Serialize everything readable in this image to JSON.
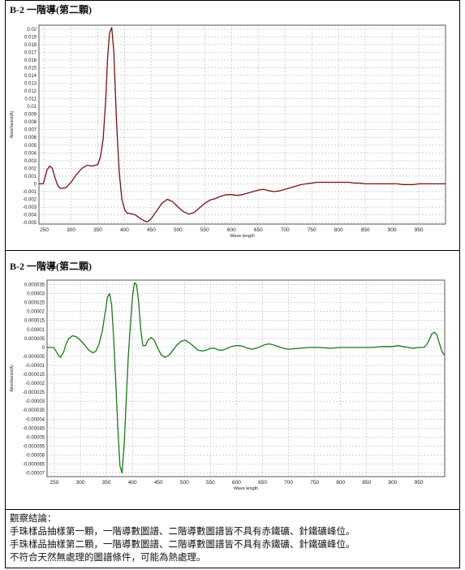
{
  "section1": {
    "title": "B-2 一階導(第二顆)"
  },
  "section2": {
    "title": "B-2 一階導(第二顆)"
  },
  "notes": {
    "heading": "觀察結論：",
    "line1": "手珠樣品抽樣第一顆，一階導數圖譜、二階導數圖譜皆不具有赤鐵礦、針鐵礦峰位。",
    "line2": "手珠樣品抽樣第二顆，一階導數圖譜、二階導數圖譜皆不具有赤鐵礦、針鐵礦峰位。",
    "line3": "不符合天然無處理的圖譜條件，可能為熱處理。"
  },
  "chart_data": [
    {
      "type": "line",
      "xlabel": "Wave length",
      "ylabel": "Absorbance(A)",
      "xlim": [
        240,
        1000
      ],
      "ylim": [
        -0.0052,
        0.0205
      ],
      "xticks": [
        250,
        300,
        350,
        400,
        450,
        500,
        550,
        600,
        650,
        700,
        750,
        800,
        850,
        900,
        950
      ],
      "yticks": [
        0.02,
        0.019,
        0.018,
        0.017,
        0.016,
        0.015,
        0.014,
        0.013,
        0.012,
        0.011,
        0.01,
        0.009,
        0.008,
        0.007,
        0.006,
        0.005,
        0.004,
        0.003,
        0.002,
        0.001,
        0,
        -0.001,
        -0.002,
        -0.003,
        -0.004,
        -0.005
      ],
      "ytick_labels": [
        "0.02",
        "0.019",
        "0.018",
        "0.017",
        "0.016",
        "0.015",
        "0.014",
        "0.013",
        "0.012",
        "0.011",
        "0.01",
        "0.009",
        "0.008",
        "0.007",
        "0.006",
        "0.005",
        "0.004",
        "0.003",
        "0.002",
        "0.001",
        "0",
        "-0.001",
        "-0.002",
        "-0.003",
        "-0.004",
        "-0.005"
      ],
      "grid": true,
      "line_color": "#7a1010",
      "series": [
        {
          "x": [
            240,
            248,
            255,
            260,
            265,
            270,
            275,
            280,
            290,
            300,
            310,
            320,
            330,
            340,
            350,
            355,
            360,
            365,
            368,
            372,
            376,
            380,
            385,
            390,
            395,
            400,
            405,
            410,
            420,
            430,
            440,
            445,
            450,
            460,
            470,
            480,
            490,
            500,
            510,
            520,
            530,
            540,
            550,
            560,
            570,
            580,
            590,
            600,
            610,
            620,
            630,
            640,
            650,
            660,
            670,
            680,
            690,
            700,
            710,
            720,
            730,
            740,
            750,
            760,
            770,
            780,
            790,
            800,
            810,
            820,
            830,
            840,
            850,
            860,
            870,
            880,
            890,
            900,
            910,
            920,
            930,
            940,
            950,
            960,
            970,
            980,
            990,
            1000
          ],
          "y": [
            0,
            0,
            0.0018,
            0.0023,
            0.002,
            0.0008,
            -0.0002,
            -0.0006,
            -0.0005,
            0.0002,
            0.0012,
            0.002,
            0.0024,
            0.0023,
            0.0025,
            0.0035,
            0.0058,
            0.011,
            0.016,
            0.0195,
            0.0202,
            0.017,
            0.008,
            0.0015,
            -0.002,
            -0.0033,
            -0.0038,
            -0.0038,
            -0.004,
            -0.0045,
            -0.0049,
            -0.0048,
            -0.0045,
            -0.0035,
            -0.0025,
            -0.002,
            -0.0023,
            -0.003,
            -0.0036,
            -0.0039,
            -0.0037,
            -0.0031,
            -0.0025,
            -0.0021,
            -0.0019,
            -0.0016,
            -0.0014,
            -0.0014,
            -0.0015,
            -0.0014,
            -0.0012,
            -0.001,
            -0.0008,
            -0.0007,
            -0.0009,
            -0.001,
            -0.0009,
            -0.0007,
            -0.0005,
            -0.0003,
            -0.0001,
            0,
            0.0001,
            0.0002,
            0.0002,
            0.0002,
            0.0002,
            0.0002,
            0.0002,
            0.0002,
            0.0001,
            0.0001,
            0,
            0,
            0,
            0,
            0,
            0,
            0,
            -0.0001,
            -0.0001,
            -0.0001,
            0,
            0,
            0,
            0,
            0,
            0
          ]
        }
      ]
    },
    {
      "type": "line",
      "xlabel": "Wave length",
      "ylabel": "Absorbance(A)",
      "xlim": [
        236,
        1000
      ],
      "ylim": [
        -7.2e-05,
        3.75e-05
      ],
      "xticks": [
        250,
        300,
        350,
        400,
        450,
        500,
        550,
        600,
        650,
        700,
        750,
        800,
        850,
        900,
        950
      ],
      "yticks": [
        3.5e-05,
        3e-05,
        2.5e-05,
        2e-05,
        1.5e-05,
        1e-05,
        5e-06,
        0,
        -5e-06,
        -1e-05,
        -1.5e-05,
        -2e-05,
        -2.5e-05,
        -3e-05,
        -3.5e-05,
        -4e-05,
        -4.5e-05,
        -5e-05,
        -5.5e-05,
        -6e-05,
        -6.5e-05,
        -7e-05
      ],
      "ytick_labels": [
        "0.000035",
        "0.00003",
        "0.000025",
        "0.00002",
        "0.000015",
        "0.00001",
        "0.000005",
        "0",
        "-0.000005",
        "-0.00001",
        "-0.000015",
        "-0.00002",
        "-0.000025",
        "-0.00003",
        "-0.000035",
        "-0.00004",
        "-0.000045",
        "-0.00005",
        "-0.000055",
        "-0.00006",
        "-0.000065",
        "-0.00007"
      ],
      "grid": true,
      "line_color": "#1a7a1a",
      "series": [
        {
          "x": [
            236,
            248,
            252,
            258,
            262,
            268,
            272,
            278,
            285,
            292,
            300,
            308,
            316,
            324,
            330,
            336,
            342,
            348,
            352,
            356,
            360,
            364,
            368,
            372,
            376,
            380,
            384,
            388,
            392,
            396,
            400,
            404,
            408,
            412,
            416,
            420,
            425,
            430,
            436,
            442,
            448,
            455,
            462,
            470,
            478,
            486,
            494,
            502,
            510,
            518,
            526,
            534,
            542,
            550,
            558,
            566,
            574,
            582,
            590,
            598,
            606,
            614,
            622,
            630,
            638,
            646,
            654,
            662,
            670,
            680,
            690,
            700,
            720,
            740,
            760,
            780,
            800,
            820,
            840,
            860,
            880,
            900,
            910,
            920,
            930,
            940,
            950,
            960,
            965,
            970,
            975,
            980,
            985,
            990,
            995,
            1000
          ],
          "y": [
            0,
            0,
            -1.5e-06,
            -4.5e-06,
            -5.5e-06,
            -2.5e-06,
            1.5e-06,
            5e-06,
            6.5e-06,
            6e-06,
            4e-06,
            1.5e-06,
            -1.5e-06,
            -3e-06,
            -2e-06,
            2e-06,
            9e-06,
            2e-05,
            2.8e-05,
            3e-05,
            2.4e-05,
            5e-06,
            -2e-05,
            -4.5e-05,
            -6.6e-05,
            -7e-05,
            -5.5e-05,
            -3e-05,
            -5e-06,
            1.2e-05,
            2.8e-05,
            3.6e-05,
            3.5e-05,
            2.5e-05,
            1e-05,
            1e-06,
            1e-06,
            4e-06,
            5.5e-06,
            4e-06,
            0,
            -4e-06,
            -5.5e-06,
            -4.5e-06,
            -1.5e-06,
            1.5e-06,
            3.5e-06,
            4e-06,
            2.5e-06,
            5e-07,
            -1.5e-06,
            -2e-06,
            -1.5e-06,
            -5e-07,
            -5e-07,
            -1.5e-06,
            -1.5e-06,
            -5e-07,
            5e-07,
            1e-06,
            1e-06,
            5e-07,
            -5e-07,
            -1e-06,
            -5e-07,
            5e-07,
            1.5e-06,
            2e-06,
            1.5e-06,
            5e-07,
            -5e-07,
            -1e-06,
            -5e-07,
            0,
            0,
            -5e-07,
            0,
            0,
            0,
            0,
            5e-07,
            5e-07,
            1e-06,
            5e-07,
            0,
            -5e-07,
            0,
            0,
            1.5e-06,
            4e-06,
            7.5e-06,
            8.5e-06,
            7e-06,
            2e-06,
            -2.5e-06,
            -4.5e-06
          ]
        }
      ]
    }
  ]
}
